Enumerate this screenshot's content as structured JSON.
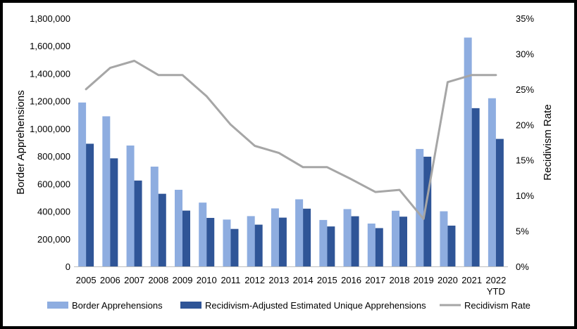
{
  "chart_data": {
    "type": "bar",
    "categories": [
      "2005",
      "2006",
      "2007",
      "2008",
      "2009",
      "2010",
      "2011",
      "2012",
      "2013",
      "2014",
      "2015",
      "2016",
      "2017",
      "2018",
      "2019",
      "2020",
      "2021",
      "2022\nYTD"
    ],
    "series": [
      {
        "name": "Border Apprehensions",
        "type": "bar",
        "axis": "left",
        "color": "#8EADE0",
        "values": [
          1189000,
          1089000,
          877000,
          724000,
          556000,
          463000,
          340000,
          365000,
          421000,
          487000,
          337000,
          416000,
          311000,
          404000,
          852000,
          400000,
          1660000,
          1220000
        ]
      },
      {
        "name": "Recidivism-Adjusted Estimated Unique Apprehensions",
        "type": "bar",
        "axis": "left",
        "color": "#2F5597",
        "values": [
          890000,
          784000,
          623000,
          527000,
          405000,
          352000,
          272000,
          303000,
          354000,
          419000,
          290000,
          364000,
          278000,
          361000,
          796000,
          296000,
          1148000,
          925000
        ]
      },
      {
        "name": "Recidivism Rate",
        "type": "line",
        "axis": "right",
        "color": "#A6A6A6",
        "values": [
          25,
          28,
          29,
          27,
          27,
          24,
          20,
          17,
          16,
          14,
          14,
          12.3,
          10.5,
          10.8,
          6.7,
          26,
          27,
          27
        ]
      }
    ],
    "xlabel": "",
    "ylabel": "Border Apprehensions",
    "y2label": "Recidivism Rate",
    "ylim": [
      0,
      1800000
    ],
    "y2lim": [
      0,
      35
    ],
    "yticks": [
      "0",
      "200,000",
      "400,000",
      "600,000",
      "800,000",
      "1,000,000",
      "1,200,000",
      "1,400,000",
      "1,600,000",
      "1,800,000"
    ],
    "y2ticks": [
      "0%",
      "5%",
      "10%",
      "15%",
      "20%",
      "25%",
      "30%",
      "35%"
    ],
    "grid": false,
    "legend": "bottom"
  }
}
